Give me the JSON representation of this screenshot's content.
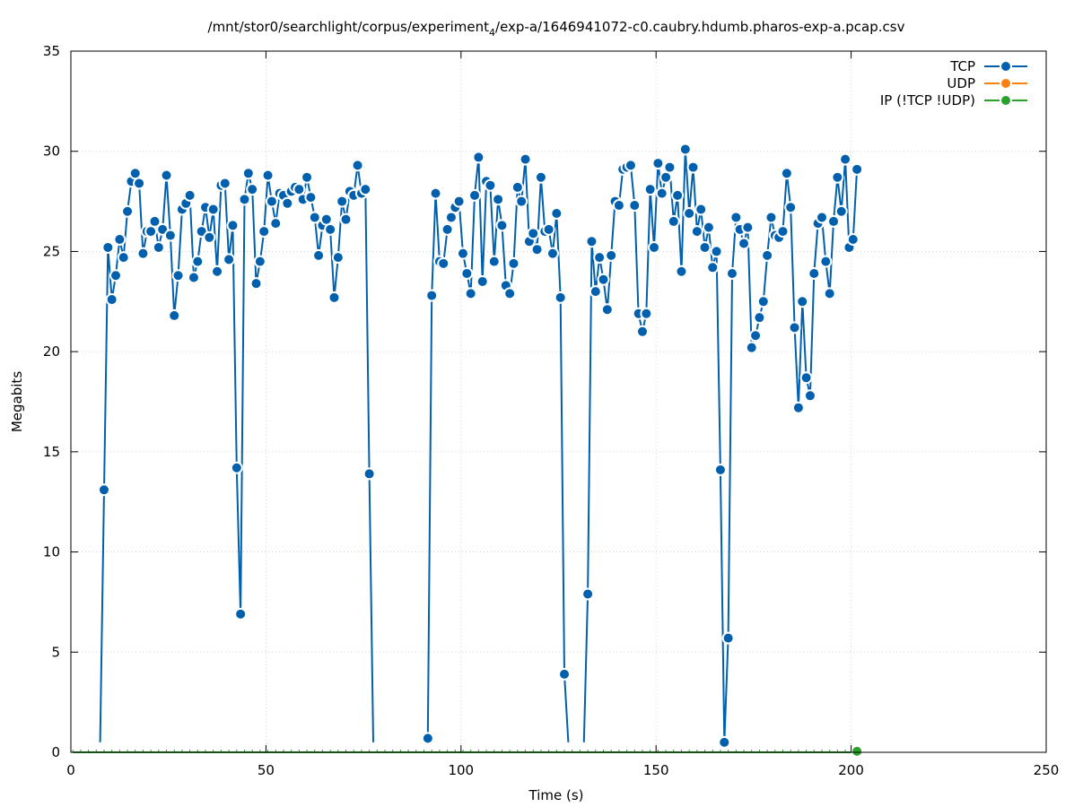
{
  "chart_data": {
    "type": "line",
    "title": "/mnt/stor0/searchlight/corpus/experiment",
    "title_subscript": "4",
    "title_suffix": "/exp-a/1646941072-c0.caubry.hdumb.pharos-exp-a.pcap.csv",
    "xlabel": "Time (s)",
    "ylabel": "Megabits",
    "xlim": [
      0,
      250
    ],
    "ylim": [
      0,
      35
    ],
    "xticks": [
      0,
      50,
      100,
      150,
      200,
      250
    ],
    "yticks": [
      0,
      5,
      10,
      15,
      20,
      25,
      30,
      35
    ],
    "grid": true,
    "legend_position": "top-right",
    "series": [
      {
        "name": "TCP",
        "color": "#0060ad",
        "x": [
          7.5,
          8.5,
          9.5,
          10.5,
          11.5,
          12.5,
          13.5,
          14.5,
          15.5,
          16.5,
          17.5,
          18.5,
          19.5,
          20.5,
          21.5,
          22.5,
          23.5,
          24.5,
          25.5,
          26.5,
          27.5,
          28.5,
          29.5,
          30.5,
          31.5,
          32.5,
          33.5,
          34.5,
          35.5,
          36.5,
          37.5,
          38.5,
          39.5,
          40.5,
          41.5,
          42.5,
          43.5,
          44.5,
          45.5,
          46.5,
          47.5,
          48.5,
          49.5,
          50.5,
          51.5,
          52.5,
          53.5,
          54.5,
          55.5,
          56.5,
          57.5,
          58.5,
          59.5,
          60.5,
          61.5,
          62.5,
          63.5,
          64.5,
          65.5,
          66.5,
          67.5,
          68.5,
          69.5,
          70.5,
          71.5,
          72.5,
          73.5,
          74.5,
          75.5,
          76.5,
          77.5,
          null,
          91.5,
          92.5,
          93.5,
          94.5,
          95.5,
          96.5,
          97.5,
          98.5,
          99.5,
          100.5,
          101.5,
          102.5,
          103.5,
          104.5,
          105.5,
          106.5,
          107.5,
          108.5,
          109.5,
          110.5,
          111.5,
          112.5,
          113.5,
          114.5,
          115.5,
          116.5,
          117.5,
          118.5,
          119.5,
          120.5,
          121.5,
          122.5,
          123.5,
          124.5,
          125.5,
          126.5,
          127.5,
          null,
          131.5,
          132.5,
          133.5,
          134.5,
          135.5,
          136.5,
          137.5,
          138.5,
          139.5,
          140.5,
          141.5,
          142.5,
          143.5,
          144.5,
          145.5,
          146.5,
          147.5,
          148.5,
          149.5,
          150.5,
          151.5,
          152.5,
          153.5,
          154.5,
          155.5,
          156.5,
          157.5,
          158.5,
          159.5,
          160.5,
          161.5,
          162.5,
          163.5,
          164.5,
          165.5,
          166.5,
          167.5,
          168.5,
          169.5,
          170.5,
          171.5,
          172.5,
          173.5,
          174.5,
          175.5,
          176.5,
          177.5,
          178.5,
          179.5,
          180.5,
          181.5,
          182.5,
          183.5,
          184.5,
          185.5,
          186.5,
          187.5,
          188.5,
          189.5,
          190.5,
          191.5,
          192.5,
          193.5,
          194.5,
          195.5,
          196.5,
          197.5,
          198.5,
          199.5,
          200.5,
          201.5
        ],
        "y": [
          0.5,
          13.1,
          25.2,
          22.6,
          23.8,
          25.6,
          24.7,
          27.0,
          28.5,
          28.9,
          28.4,
          24.9,
          26.0,
          26.0,
          26.5,
          25.2,
          26.1,
          28.8,
          25.8,
          21.8,
          23.8,
          27.1,
          27.4,
          27.8,
          23.7,
          24.5,
          26.0,
          27.2,
          25.7,
          27.1,
          24.0,
          28.3,
          28.4,
          24.6,
          26.3,
          14.2,
          6.9,
          27.6,
          28.9,
          28.1,
          23.4,
          24.5,
          26.0,
          28.8,
          27.5,
          26.4,
          27.9,
          27.8,
          27.4,
          28.0,
          28.2,
          28.1,
          27.6,
          28.7,
          27.7,
          26.7,
          24.8,
          26.3,
          26.6,
          26.1,
          22.7,
          24.7,
          27.5,
          26.6,
          28.0,
          27.8,
          29.3,
          27.9,
          28.1,
          13.9,
          0.5,
          null,
          0.7,
          22.8,
          27.9,
          24.5,
          24.4,
          26.1,
          26.7,
          27.2,
          27.5,
          24.9,
          23.9,
          22.9,
          27.8,
          29.7,
          23.5,
          28.5,
          28.3,
          24.5,
          27.6,
          26.3,
          23.3,
          22.9,
          24.4,
          28.2,
          27.5,
          29.6,
          25.5,
          25.9,
          25.1,
          28.7,
          26.0,
          26.1,
          24.9,
          26.9,
          22.7,
          3.9,
          0.5,
          null,
          0.5,
          7.9,
          25.5,
          23.0,
          24.7,
          23.6,
          22.1,
          24.8,
          27.5,
          27.3,
          29.1,
          29.2,
          29.3,
          27.3,
          21.9,
          21.0,
          21.9,
          28.1,
          25.2,
          29.4,
          27.9,
          28.7,
          29.2,
          26.5,
          27.8,
          24.0,
          30.1,
          26.9,
          29.2,
          26.0,
          27.1,
          25.2,
          26.2,
          24.2,
          25.0,
          14.1,
          0.5,
          5.7,
          23.9,
          26.7,
          26.1,
          25.4,
          26.2,
          20.2,
          20.8,
          21.7,
          22.5,
          24.8,
          26.7,
          25.8,
          25.7,
          26.0,
          28.9,
          27.2,
          21.2,
          17.2,
          22.5,
          18.7,
          17.8,
          23.9,
          26.4,
          26.7,
          24.5,
          22.9,
          26.5,
          28.7,
          27.0,
          29.6,
          25.2,
          25.6,
          29.1
        ],
        "markers_hidden_at_edges": true
      },
      {
        "name": "UDP",
        "color": "#ff7f0e",
        "x": [],
        "y": []
      },
      {
        "name": "IP (!TCP  !UDP)",
        "color": "#2ca02c",
        "x": [
          0.5,
          2.5,
          4.5,
          6.5,
          8.5,
          10.5,
          12.5,
          14.5,
          16.5,
          18.5,
          20.5,
          22.5,
          24.5,
          26.5,
          28.5,
          30.5,
          32.5,
          34.5,
          36.5,
          38.5,
          40.5,
          42.5,
          44.5,
          46.5,
          48.5,
          50.5,
          52.5,
          54.5,
          56.5,
          58.5,
          60.5,
          62.5,
          64.5,
          66.5,
          68.5,
          70.5,
          72.5,
          74.5,
          76.5,
          78.5,
          80.5,
          82.5,
          84.5,
          86.5,
          88.5,
          90.5,
          92.5,
          94.5,
          96.5,
          98.5,
          100.5,
          102.5,
          104.5,
          106.5,
          108.5,
          110.5,
          112.5,
          114.5,
          116.5,
          118.5,
          120.5,
          122.5,
          124.5,
          126.5,
          128.5,
          130.5,
          132.5,
          134.5,
          136.5,
          138.5,
          140.5,
          142.5,
          144.5,
          146.5,
          148.5,
          150.5,
          152.5,
          154.5,
          156.5,
          158.5,
          160.5,
          162.5,
          164.5,
          166.5,
          168.5,
          170.5,
          172.5,
          174.5,
          176.5,
          178.5,
          180.5,
          182.5,
          184.5,
          186.5,
          188.5,
          190.5,
          192.5,
          194.5,
          196.5,
          198.5,
          200.5,
          201.5
        ],
        "y": [
          0,
          0,
          0,
          0,
          0,
          0,
          0,
          0,
          0,
          0,
          0,
          0,
          0,
          0,
          0,
          0,
          0,
          0,
          0,
          0,
          0,
          0,
          0,
          0,
          0,
          0,
          0,
          0,
          0,
          0,
          0,
          0,
          0,
          0,
          0,
          0,
          0,
          0,
          0,
          0,
          0,
          0,
          0,
          0,
          0,
          0,
          0,
          0,
          0,
          0,
          0,
          0,
          0,
          0,
          0,
          0,
          0,
          0,
          0,
          0,
          0,
          0,
          0,
          0,
          0,
          0,
          0,
          0,
          0,
          0,
          0,
          0,
          0,
          0,
          0,
          0,
          0,
          0,
          0,
          0,
          0,
          0,
          0,
          0,
          0,
          0,
          0,
          0,
          0,
          0,
          0,
          0,
          0,
          0,
          0,
          0,
          0,
          0,
          0,
          0,
          0,
          0.05
        ]
      }
    ]
  }
}
